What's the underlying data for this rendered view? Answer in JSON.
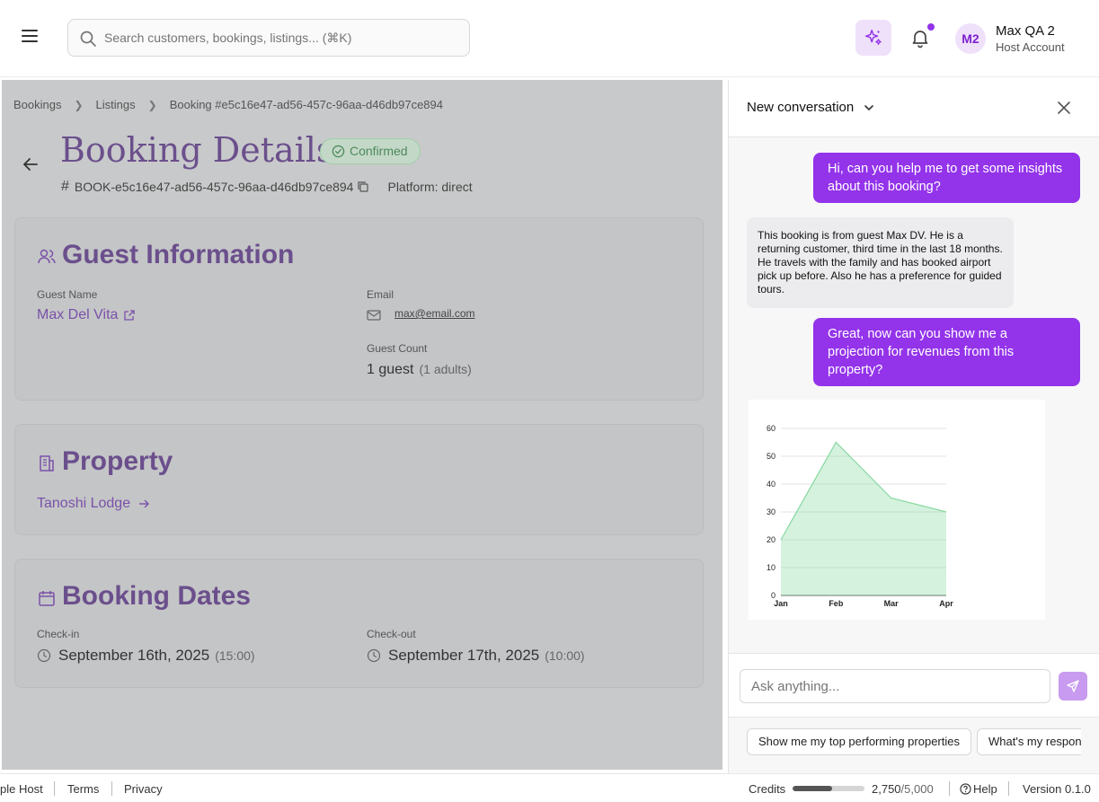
{
  "header": {
    "search_placeholder": "Search customers, bookings, listings... (⌘K)",
    "avatar_initials": "M2",
    "user_name": "Max QA 2",
    "user_role": "Host Account",
    "accent": "#9333ea"
  },
  "breadcrumbs": [
    "Bookings",
    "Listings",
    "Booking #e5c16e47-ad56-457c-96aa-d46db97ce894"
  ],
  "booking": {
    "title": "Booking Details",
    "status": "Confirmed",
    "reference": "BOOK-e5c16e47-ad56-457c-96aa-d46db97ce894",
    "platform": "Platform: direct"
  },
  "guest": {
    "heading": "Guest Information",
    "name_label": "Guest Name",
    "name": "Max Del Vita",
    "email_label": "Email",
    "email": "max@email.com",
    "count_label": "Guest Count",
    "count": "1 guest",
    "count_detail": "(1 adults)"
  },
  "property": {
    "heading": "Property",
    "name": "Tanoshi Lodge"
  },
  "dates": {
    "heading": "Booking Dates",
    "checkin_label": "Check-in",
    "checkin": "September 16th, 2025",
    "checkin_time": "(15:00)",
    "checkout_label": "Check-out",
    "checkout": "September 17th, 2025",
    "checkout_time": "(10:00)"
  },
  "chat": {
    "title": "New conversation",
    "messages": [
      {
        "role": "user",
        "text": "Hi, can you help me to get some insights about this booking?"
      },
      {
        "role": "assistant",
        "text": "This booking is from guest Max DV. He is a returning customer, third time in the last 18 months. He travels with the family and has booked airport pick up before. Also he has a preference for guided tours."
      },
      {
        "role": "user",
        "text": "Great, now can you show me a projection for revenues from this property?"
      }
    ],
    "input_placeholder": "Ask anything...",
    "suggestions": [
      "Show me my top performing properties",
      "What's my respon"
    ]
  },
  "chart_data": {
    "type": "area",
    "categories": [
      "Jan",
      "Feb",
      "Mar",
      "Apr"
    ],
    "values": [
      20,
      55,
      35,
      30
    ],
    "ylim": [
      0,
      60
    ],
    "yticks": [
      0,
      10,
      20,
      30,
      40,
      50,
      60
    ],
    "grid": true,
    "color": "#86d9a0"
  },
  "footer": {
    "host": "ple Host",
    "terms": "Terms",
    "privacy": "Privacy",
    "credits_label": "Credits",
    "credits_used": "2,750",
    "credits_total": "/5,000",
    "credits_fraction": 0.55,
    "help": "Help",
    "version": "Version 0.1.0"
  }
}
